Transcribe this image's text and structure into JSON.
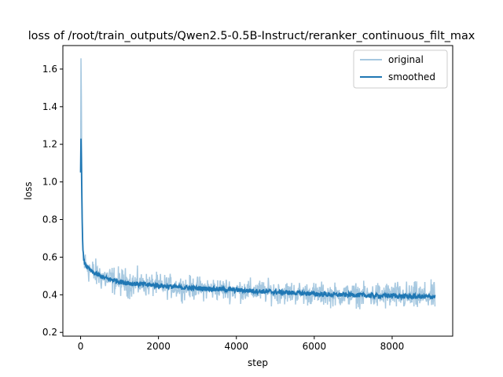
{
  "chart_data": {
    "type": "line",
    "title": "loss of /root/train_outputs/Qwen2.5-0.5B-Instruct/reranker_continuous_filt_max",
    "xlabel": "step",
    "ylabel": "loss",
    "xlim": [
      -455,
      9555
    ],
    "ylim": [
      0.18,
      1.725
    ],
    "xticks": [
      0,
      2000,
      4000,
      6000,
      8000
    ],
    "yticks": [
      0.2,
      0.4,
      0.6,
      0.8,
      1.0,
      1.2,
      1.4,
      1.6
    ],
    "xtick_labels": [
      "0",
      "2000",
      "4000",
      "6000",
      "8000"
    ],
    "ytick_labels": [
      "0.2",
      "0.4",
      "0.6",
      "0.8",
      "1.0",
      "1.2",
      "1.4",
      "1.6"
    ],
    "legend": {
      "placement": "top-right"
    },
    "grid": false,
    "series": [
      {
        "name": "original",
        "color": "#a6c8e0",
        "x": [
          0,
          10,
          20,
          30,
          40,
          50,
          60,
          80,
          100,
          130,
          160,
          200,
          250,
          300,
          400,
          500,
          600,
          800,
          1000,
          1300,
          1600,
          2000,
          2500,
          3000,
          3500,
          4000,
          4500,
          5000,
          5500,
          6000,
          6500,
          7000,
          7500,
          8000,
          8500,
          9100
        ],
        "y": [
          1.05,
          1.64,
          1.45,
          1.1,
          0.88,
          0.74,
          0.64,
          0.6,
          0.57,
          0.56,
          0.55,
          0.54,
          0.53,
          0.52,
          0.51,
          0.5,
          0.49,
          0.48,
          0.47,
          0.46,
          0.455,
          0.45,
          0.44,
          0.435,
          0.43,
          0.425,
          0.42,
          0.415,
          0.41,
          0.405,
          0.4,
          0.4,
          0.395,
          0.395,
          0.39,
          0.39
        ],
        "noise_band": [
          0.2,
          0.12
        ]
      },
      {
        "name": "smoothed",
        "color": "#1f77b4",
        "x": [
          0,
          10,
          20,
          30,
          40,
          50,
          60,
          80,
          100,
          130,
          160,
          200,
          250,
          300,
          400,
          500,
          600,
          800,
          1000,
          1300,
          1600,
          2000,
          2500,
          3000,
          3500,
          4000,
          4500,
          5000,
          5500,
          6000,
          6500,
          7000,
          7500,
          8000,
          8500,
          9100
        ],
        "y": [
          1.05,
          1.23,
          1.12,
          0.95,
          0.8,
          0.7,
          0.63,
          0.59,
          0.57,
          0.56,
          0.55,
          0.54,
          0.53,
          0.52,
          0.51,
          0.5,
          0.49,
          0.48,
          0.47,
          0.46,
          0.455,
          0.45,
          0.44,
          0.435,
          0.43,
          0.425,
          0.42,
          0.415,
          0.41,
          0.405,
          0.4,
          0.4,
          0.395,
          0.395,
          0.39,
          0.39
        ]
      }
    ]
  }
}
